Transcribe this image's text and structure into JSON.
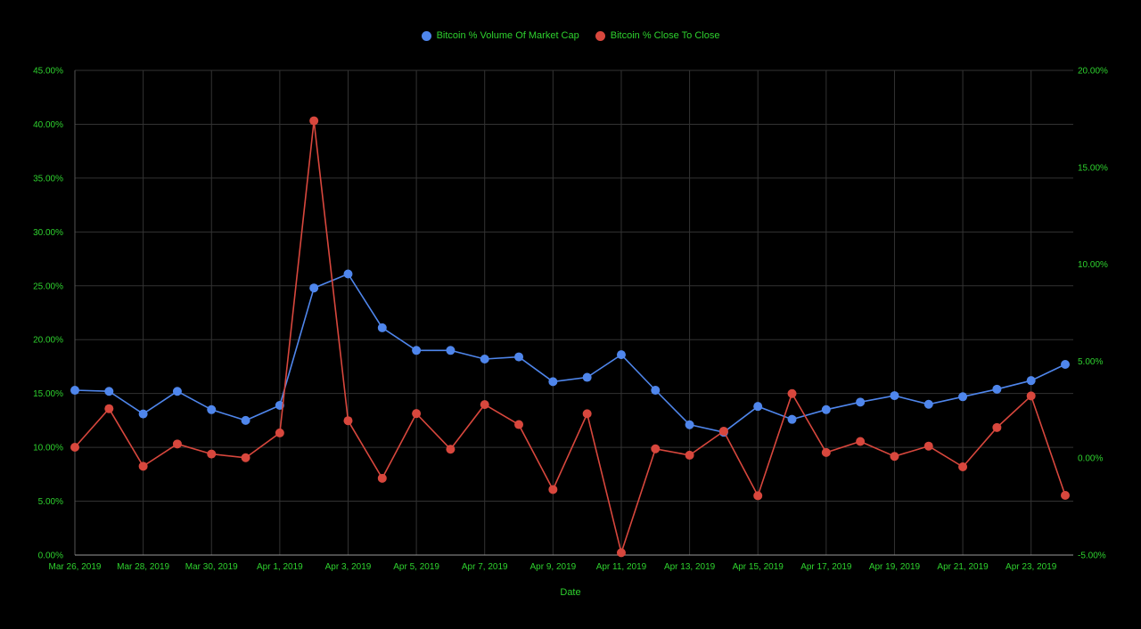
{
  "chart_data": {
    "type": "line",
    "xlabel": "Date",
    "x": [
      "Mar 26, 2019",
      "Mar 27, 2019",
      "Mar 28, 2019",
      "Mar 29, 2019",
      "Mar 30, 2019",
      "Mar 31, 2019",
      "Apr 1, 2019",
      "Apr 2, 2019",
      "Apr 3, 2019",
      "Apr 4, 2019",
      "Apr 5, 2019",
      "Apr 6, 2019",
      "Apr 7, 2019",
      "Apr 8, 2019",
      "Apr 9, 2019",
      "Apr 10, 2019",
      "Apr 11, 2019",
      "Apr 12, 2019",
      "Apr 13, 2019",
      "Apr 14, 2019",
      "Apr 15, 2019",
      "Apr 16, 2019",
      "Apr 17, 2019",
      "Apr 18, 2019",
      "Apr 19, 2019",
      "Apr 20, 2019",
      "Apr 21, 2019",
      "Apr 22, 2019",
      "Apr 23, 2019",
      "Apr 24, 2019"
    ],
    "x_tick_labels": [
      "Mar 26, 2019",
      "Mar 28, 2019",
      "Mar 30, 2019",
      "Apr 1, 2019",
      "Apr 3, 2019",
      "Apr 5, 2019",
      "Apr 7, 2019",
      "Apr 9, 2019",
      "Apr 11, 2019",
      "Apr 13, 2019",
      "Apr 15, 2019",
      "Apr 17, 2019",
      "Apr 19, 2019",
      "Apr 21, 2019",
      "Apr 23, 2019"
    ],
    "y_left": {
      "ylim": [
        0,
        45
      ],
      "tick_labels": [
        "0.00%",
        "5.00%",
        "10.00%",
        "15.00%",
        "20.00%",
        "25.00%",
        "30.00%",
        "35.00%",
        "40.00%",
        "45.00%"
      ]
    },
    "y_right": {
      "ylim": [
        -5,
        20
      ],
      "tick_labels": [
        "-5.00%",
        "0.00%",
        "5.00%",
        "10.00%",
        "15.00%",
        "20.00%"
      ]
    },
    "grid": true,
    "legend_position": "top-center",
    "colors": {
      "background": "#000000",
      "text": "#2ed12e",
      "grid": "#333333"
    },
    "series": [
      {
        "name": "Bitcoin % Volume Of Market Cap",
        "axis": "left",
        "color": "#4f86ec",
        "values": [
          15.3,
          15.2,
          13.1,
          15.2,
          13.5,
          12.5,
          13.9,
          24.8,
          26.1,
          21.1,
          19.0,
          19.0,
          18.2,
          18.4,
          16.1,
          16.5,
          18.6,
          15.3,
          12.1,
          11.4,
          13.8,
          12.6,
          13.5,
          14.2,
          14.8,
          14.0,
          14.7,
          15.4,
          16.2,
          17.7
        ]
      },
      {
        "name": "Bitcoin % Close To Close",
        "axis": "right",
        "color": "#d8473d",
        "values": [
          0.56,
          2.55,
          -0.42,
          0.73,
          0.21,
          0.02,
          1.3,
          17.4,
          1.93,
          -1.04,
          2.3,
          0.46,
          2.76,
          1.73,
          -1.62,
          2.29,
          -4.88,
          0.48,
          0.15,
          1.39,
          -1.94,
          3.33,
          0.29,
          0.86,
          0.09,
          0.62,
          -0.45,
          1.58,
          3.21,
          -1.92
        ]
      }
    ]
  }
}
